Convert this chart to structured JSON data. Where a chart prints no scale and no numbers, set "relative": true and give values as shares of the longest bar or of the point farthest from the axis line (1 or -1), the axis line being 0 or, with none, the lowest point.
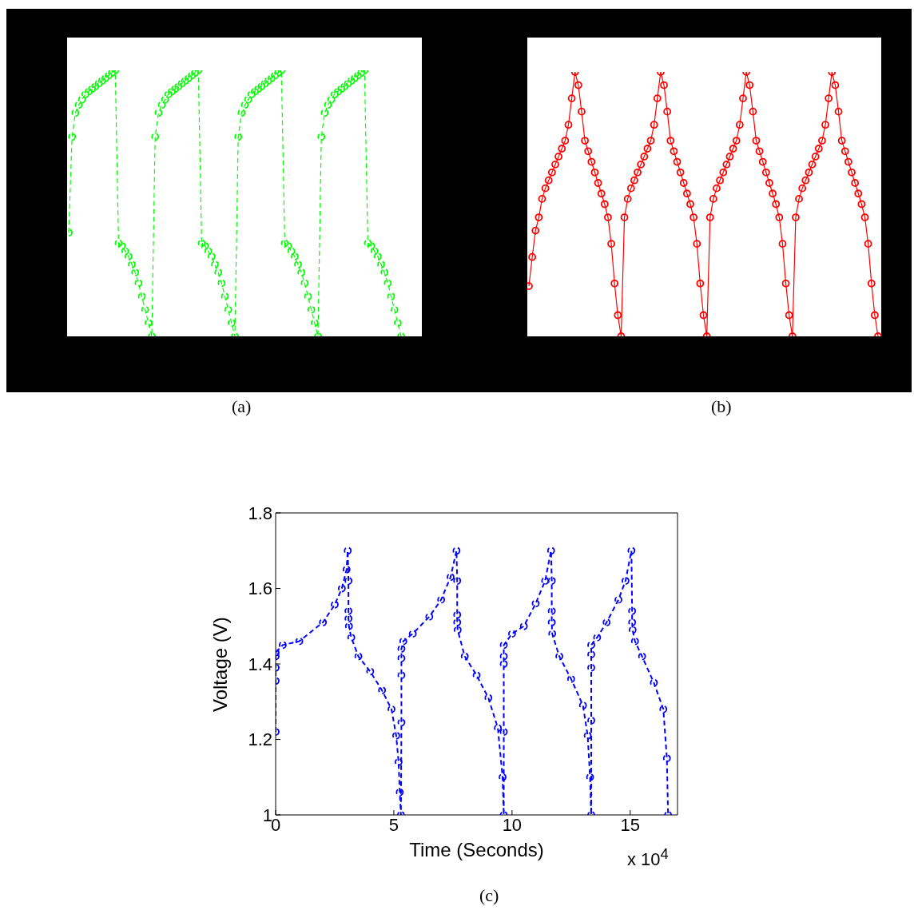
{
  "chart_data": [
    {
      "type": "line",
      "relative": true,
      "marker": "circle",
      "line_style": "dashed",
      "annotations": [
        "(a)"
      ],
      "categories": [
        null,
        null,
        null,
        null,
        null,
        null,
        null,
        null,
        null,
        null,
        null,
        null,
        null,
        null,
        null,
        null,
        null,
        null,
        null,
        null,
        null,
        null,
        null,
        null,
        null,
        null,
        null,
        null,
        null,
        null,
        null,
        null,
        null,
        null,
        null,
        null,
        null,
        null,
        null,
        null,
        null,
        null,
        null,
        null,
        null,
        null,
        null,
        null,
        null,
        null,
        null,
        null,
        null,
        null,
        null,
        null,
        null,
        null,
        null,
        null,
        null,
        null,
        null,
        null,
        null,
        null,
        null,
        null,
        null,
        null,
        null,
        null,
        null,
        null,
        null,
        null,
        null,
        null,
        null,
        null,
        null,
        null,
        null,
        null,
        null,
        null,
        null,
        null,
        null,
        null,
        null,
        null,
        null,
        null,
        null,
        null,
        null,
        null,
        null,
        null,
        null
      ],
      "series": [
        {
          "color": "#00ff00",
          "values": [
            0.39,
            0.75,
            0.84,
            0.87,
            0.89,
            0.91,
            0.92,
            0.93,
            0.94,
            0.95,
            0.96,
            0.97,
            0.98,
            0.99,
            1,
            0.35,
            0.34,
            0.32,
            0.3,
            0.27,
            0.24,
            0.2,
            0.15,
            0.1,
            0.05,
            0,
            0.75,
            0.84,
            0.87,
            0.89,
            0.91,
            0.92,
            0.93,
            0.94,
            0.95,
            0.96,
            0.97,
            0.98,
            0.99,
            1,
            0.35,
            0.34,
            0.32,
            0.3,
            0.27,
            0.24,
            0.2,
            0.15,
            0.1,
            0.05,
            0,
            0.75,
            0.84,
            0.87,
            0.89,
            0.91,
            0.92,
            0.93,
            0.94,
            0.95,
            0.96,
            0.97,
            0.98,
            0.99,
            1,
            0.35,
            0.34,
            0.32,
            0.3,
            0.27,
            0.24,
            0.2,
            0.15,
            0.1,
            0.05,
            0,
            0.75,
            0.84,
            0.87,
            0.89,
            0.91,
            0.92,
            0.93,
            0.94,
            0.95,
            0.96,
            0.97,
            0.98,
            0.99,
            1,
            0.35,
            0.34,
            0.32,
            0.3,
            0.27,
            0.24,
            0.2,
            0.15,
            0.1,
            0.05,
            0
          ]
        }
      ]
    },
    {
      "type": "line",
      "relative": true,
      "marker": "circle",
      "line_style": "solid",
      "annotations": [
        "(b)"
      ],
      "categories": [
        null,
        null,
        null,
        null,
        null,
        null,
        null,
        null,
        null,
        null,
        null,
        null,
        null,
        null,
        null,
        null,
        null,
        null,
        null,
        null,
        null,
        null,
        null,
        null,
        null,
        null,
        null,
        null,
        null,
        null,
        null,
        null,
        null,
        null,
        null,
        null,
        null,
        null,
        null,
        null,
        null,
        null,
        null,
        null,
        null,
        null,
        null,
        null,
        null,
        null,
        null,
        null,
        null,
        null,
        null,
        null,
        null,
        null,
        null,
        null,
        null,
        null,
        null,
        null,
        null,
        null,
        null,
        null,
        null,
        null,
        null,
        null,
        null,
        null,
        null,
        null,
        null,
        null,
        null,
        null,
        null,
        null,
        null,
        null,
        null,
        null,
        null,
        null,
        null,
        null,
        null,
        null,
        null,
        null,
        null,
        null,
        null,
        null,
        null,
        null,
        null,
        null,
        null,
        null,
        null,
        null,
        null
      ],
      "series": [
        {
          "color": "#ff0000",
          "values": [
            0.19,
            0.3,
            0.4,
            0.45,
            0.52,
            0.56,
            0.59,
            0.62,
            0.65,
            0.68,
            0.71,
            0.74,
            0.8,
            0.9,
            1,
            0.95,
            0.85,
            0.74,
            0.7,
            0.66,
            0.62,
            0.58,
            0.54,
            0.5,
            0.45,
            0.35,
            0.2,
            0.08,
            0,
            0.45,
            0.52,
            0.56,
            0.59,
            0.62,
            0.65,
            0.68,
            0.71,
            0.74,
            0.8,
            0.9,
            1,
            0.95,
            0.85,
            0.74,
            0.7,
            0.66,
            0.62,
            0.58,
            0.54,
            0.5,
            0.45,
            0.35,
            0.2,
            0.08,
            0,
            0.45,
            0.52,
            0.56,
            0.59,
            0.62,
            0.65,
            0.68,
            0.71,
            0.74,
            0.8,
            0.9,
            1,
            0.95,
            0.85,
            0.74,
            0.7,
            0.66,
            0.62,
            0.58,
            0.54,
            0.5,
            0.45,
            0.35,
            0.2,
            0.08,
            0,
            0.45,
            0.52,
            0.56,
            0.59,
            0.62,
            0.65,
            0.68,
            0.71,
            0.74,
            0.8,
            0.9,
            1,
            0.95,
            0.85,
            0.74,
            0.7,
            0.66,
            0.62,
            0.58,
            0.54,
            0.5,
            0.45,
            0.35,
            0.2,
            0.08,
            0
          ]
        }
      ]
    },
    {
      "type": "line",
      "xlabel": "Time (Seconds)",
      "ylabel": "Voltage (V)",
      "marker": "circle",
      "line_style": "dashed",
      "annotations": [
        "x 10$^{4}$",
        "(c)"
      ],
      "xlim": [
        0,
        17
      ],
      "xticks": [
        0,
        5,
        10,
        15
      ],
      "ylim": [
        1,
        1.8
      ],
      "yticks": [
        1,
        1.2,
        1.4,
        1.6,
        1.8
      ],
      "x": [
        0,
        0,
        0,
        0,
        0,
        0.3,
        1,
        2,
        2.5,
        2.8,
        3,
        3.05,
        3.08,
        3.08,
        3.08,
        3.1,
        3.2,
        3.5,
        4,
        4.5,
        4.9,
        5.1,
        5.2,
        5.25,
        5.3,
        5.32,
        5.32,
        5.32,
        5.32,
        5.4,
        5.8,
        6.5,
        7,
        7.4,
        7.65,
        7.68,
        7.68,
        7.68,
        7.7,
        8,
        8.5,
        9,
        9.4,
        9.6,
        9.65,
        9.65,
        9.65,
        9.65,
        9.65,
        10,
        10.5,
        11,
        11.4,
        11.65,
        11.68,
        11.68,
        11.68,
        11.7,
        12,
        12.5,
        13,
        13.2,
        13.3,
        13.35,
        13.35,
        13.35,
        13.35,
        13.35,
        13.6,
        14,
        14.5,
        14.8,
        15.05,
        15.08,
        15.08,
        15.1,
        15.2,
        15.5,
        16,
        16.4,
        16.55,
        16.6
      ],
      "series": [
        {
          "color": "#0000ff",
          "values": [
            1.22,
            1.355,
            1.39,
            1.42,
            1.43,
            1.45,
            1.46,
            1.51,
            1.557,
            1.6,
            1.65,
            1.7,
            1.62,
            1.54,
            1.52,
            1.5,
            1.47,
            1.42,
            1.38,
            1.33,
            1.28,
            1.21,
            1.14,
            1.06,
            1,
            1.245,
            1.37,
            1.415,
            1.44,
            1.46,
            1.48,
            1.525,
            1.57,
            1.63,
            1.7,
            1.62,
            1.53,
            1.51,
            1.49,
            1.42,
            1.37,
            1.31,
            1.23,
            1.1,
            1,
            1.22,
            1.4,
            1.42,
            1.45,
            1.48,
            1.5,
            1.56,
            1.62,
            1.7,
            1.62,
            1.54,
            1.51,
            1.48,
            1.42,
            1.36,
            1.29,
            1.21,
            1.1,
            1,
            1.25,
            1.39,
            1.425,
            1.45,
            1.47,
            1.51,
            1.57,
            1.62,
            1.7,
            1.54,
            1.51,
            1.49,
            1.46,
            1.42,
            1.35,
            1.28,
            1.15,
            1
          ]
        }
      ]
    }
  ]
}
